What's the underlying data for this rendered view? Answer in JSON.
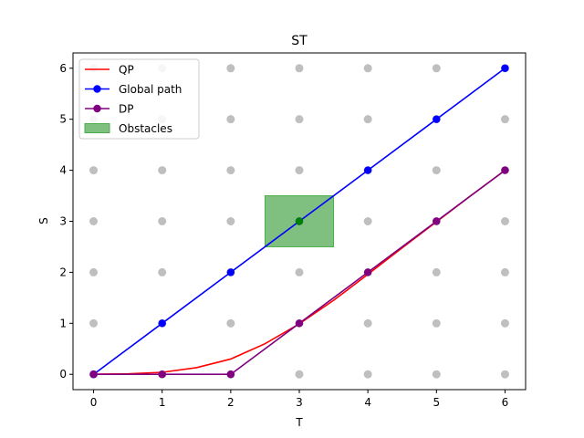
{
  "chart_data": {
    "type": "line",
    "title": "ST",
    "xlabel": "T",
    "ylabel": "S",
    "xlim": [
      -0.3,
      6.3
    ],
    "ylim": [
      -0.3,
      6.3
    ],
    "xticks": [
      "0",
      "1",
      "2",
      "3",
      "4",
      "5",
      "6"
    ],
    "yticks": [
      "0",
      "1",
      "2",
      "3",
      "4",
      "5",
      "6"
    ],
    "grid": false,
    "legend_position": "top-left",
    "sample_grid": {
      "color": "#bfbfbf",
      "x": [
        0,
        1,
        2,
        3,
        4,
        5,
        6
      ],
      "y": [
        0,
        1,
        2,
        3,
        4,
        5,
        6
      ]
    },
    "obstacle": {
      "name": "Obstacles",
      "color": "#7fbf7f",
      "edge_color": "#4caf4c",
      "t_range": [
        2.5,
        3.5
      ],
      "s_range": [
        2.5,
        3.5
      ]
    },
    "series": [
      {
        "name": "QP",
        "color": "#ff0000",
        "marker": false,
        "x": [
          0,
          0.5,
          1,
          1.5,
          2,
          2.5,
          3,
          3.5,
          4,
          4.5,
          5,
          5.5,
          6
        ],
        "y": [
          0,
          0.01,
          0.04,
          0.13,
          0.3,
          0.6,
          0.99,
          1.45,
          1.96,
          2.48,
          2.99,
          3.5,
          4.0
        ]
      },
      {
        "name": "Global path",
        "color": "#0000ff",
        "marker": true,
        "x": [
          0,
          1,
          2,
          3,
          4,
          5,
          6
        ],
        "y": [
          0,
          1,
          2,
          3,
          4,
          5,
          6
        ]
      },
      {
        "name": "DP",
        "color": "#800080",
        "marker": true,
        "x": [
          0,
          1,
          2,
          3,
          4,
          5,
          6
        ],
        "y": [
          0,
          0,
          0,
          1,
          2,
          3,
          4
        ]
      }
    ],
    "highlight_points": [
      {
        "x": 3,
        "y": 3,
        "color": "#008000"
      }
    ]
  }
}
